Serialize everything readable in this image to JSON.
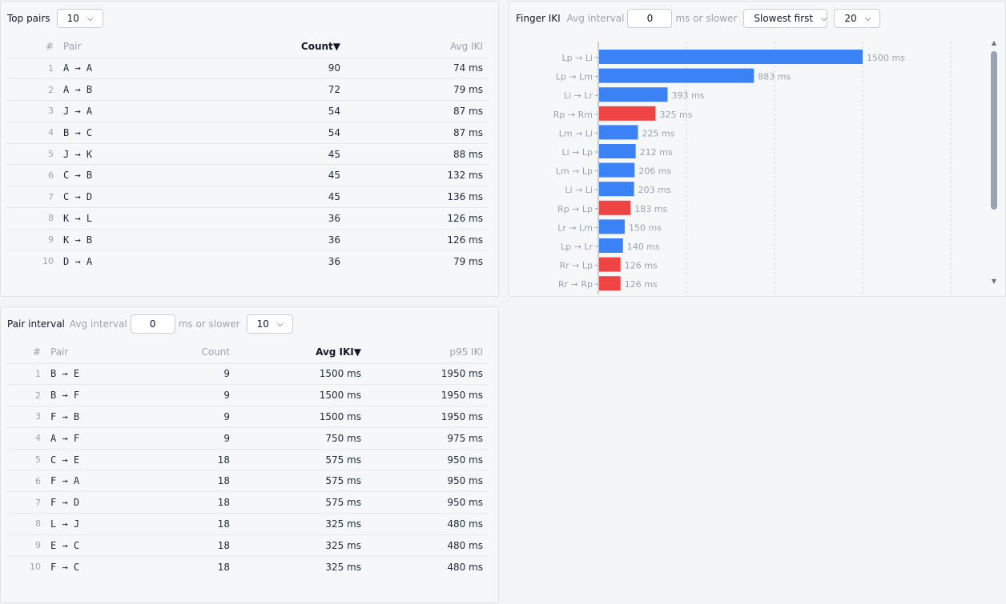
{
  "top_pairs": {
    "title": "Top pairs",
    "limit": "10",
    "columns": {
      "idx": "#",
      "pair": "Pair",
      "count": "Count",
      "avg": "Avg IKI"
    },
    "sort_icon": "▼",
    "rows": [
      {
        "idx": "1",
        "pair": "A → A",
        "count": "90",
        "avg": "74 ms"
      },
      {
        "idx": "2",
        "pair": "A → B",
        "count": "72",
        "avg": "79 ms"
      },
      {
        "idx": "3",
        "pair": "J → A",
        "count": "54",
        "avg": "87 ms"
      },
      {
        "idx": "4",
        "pair": "B → C",
        "count": "54",
        "avg": "87 ms"
      },
      {
        "idx": "5",
        "pair": "J → K",
        "count": "45",
        "avg": "88 ms"
      },
      {
        "idx": "6",
        "pair": "C → B",
        "count": "45",
        "avg": "132 ms"
      },
      {
        "idx": "7",
        "pair": "C → D",
        "count": "45",
        "avg": "136 ms"
      },
      {
        "idx": "8",
        "pair": "K → L",
        "count": "36",
        "avg": "126 ms"
      },
      {
        "idx": "9",
        "pair": "K → B",
        "count": "36",
        "avg": "126 ms"
      },
      {
        "idx": "10",
        "pair": "D → A",
        "count": "36",
        "avg": "79 ms"
      }
    ]
  },
  "finger_iki": {
    "title": "Finger IKI",
    "avg_label": "Avg interval",
    "threshold": "0",
    "slower_label": "ms or slower",
    "order": "Slowest first",
    "limit": "20"
  },
  "pair_interval": {
    "title": "Pair interval",
    "avg_label": "Avg interval",
    "threshold": "0",
    "slower_label": "ms or slower",
    "limit": "10",
    "columns": {
      "idx": "#",
      "pair": "Pair",
      "count": "Count",
      "avg": "Avg IKI",
      "p95": "p95 IKI"
    },
    "sort_icon": "▼",
    "rows": [
      {
        "idx": "1",
        "pair": "B → E",
        "count": "9",
        "avg": "1500 ms",
        "p95": "1950 ms"
      },
      {
        "idx": "2",
        "pair": "B → F",
        "count": "9",
        "avg": "1500 ms",
        "p95": "1950 ms"
      },
      {
        "idx": "3",
        "pair": "F → B",
        "count": "9",
        "avg": "1500 ms",
        "p95": "1950 ms"
      },
      {
        "idx": "4",
        "pair": "A → F",
        "count": "9",
        "avg": "750 ms",
        "p95": "975 ms"
      },
      {
        "idx": "5",
        "pair": "C → E",
        "count": "18",
        "avg": "575 ms",
        "p95": "950 ms"
      },
      {
        "idx": "6",
        "pair": "F → A",
        "count": "18",
        "avg": "575 ms",
        "p95": "950 ms"
      },
      {
        "idx": "7",
        "pair": "F → D",
        "count": "18",
        "avg": "575 ms",
        "p95": "950 ms"
      },
      {
        "idx": "8",
        "pair": "L → J",
        "count": "18",
        "avg": "325 ms",
        "p95": "480 ms"
      },
      {
        "idx": "9",
        "pair": "E → C",
        "count": "18",
        "avg": "325 ms",
        "p95": "480 ms"
      },
      {
        "idx": "10",
        "pair": "F → C",
        "count": "18",
        "avg": "325 ms",
        "p95": "480 ms"
      }
    ]
  },
  "chart_data": {
    "type": "bar",
    "orientation": "horizontal",
    "unit": "ms",
    "xlim": [
      0,
      2000
    ],
    "grid": true,
    "colors": {
      "left": "#3b82f6",
      "right": "#ef4444"
    },
    "categories": [
      "Lp → Li",
      "Lp → Lm",
      "Li → Lr",
      "Rp → Rm",
      "Lm → Li",
      "Li → Lp",
      "Lm → Lp",
      "Li → Li",
      "Rp → Lp",
      "Lr → Lm",
      "Lp → Lr",
      "Rr → Lp",
      "Rr → Rp"
    ],
    "values": [
      1500,
      883,
      393,
      325,
      225,
      212,
      206,
      203,
      183,
      150,
      140,
      126,
      126
    ],
    "hand": [
      "left",
      "left",
      "left",
      "right",
      "left",
      "left",
      "left",
      "left",
      "right",
      "left",
      "left",
      "right",
      "right"
    ],
    "value_labels": [
      "1500 ms",
      "883 ms",
      "393 ms",
      "325 ms",
      "225 ms",
      "212 ms",
      "206 ms",
      "203 ms",
      "183 ms",
      "150 ms",
      "140 ms",
      "126 ms",
      "126 ms"
    ]
  }
}
